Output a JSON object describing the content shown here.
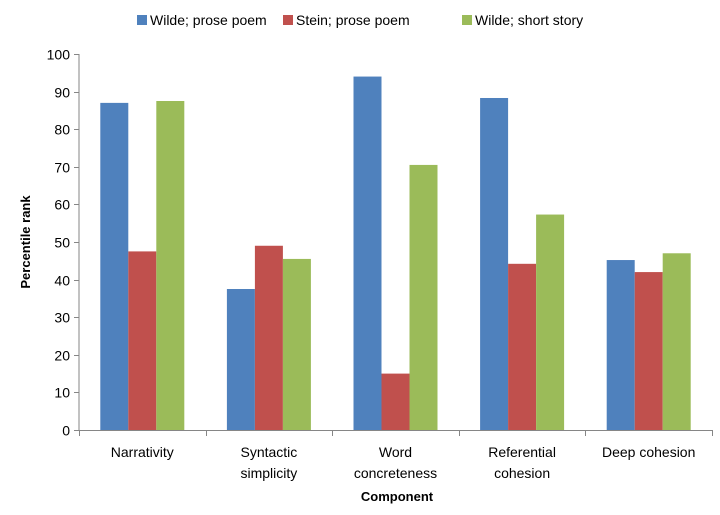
{
  "chart_data": {
    "type": "bar",
    "categories": [
      [
        "Narrativity"
      ],
      [
        "Syntactic",
        "simplicity"
      ],
      [
        "Word",
        "concreteness"
      ],
      [
        "Referential",
        "cohesion"
      ],
      [
        "Deep cohesion"
      ]
    ],
    "series": [
      {
        "name": "Wilde; prose poem",
        "color": "#4f81bd",
        "values": [
          87,
          37.5,
          94,
          88.3,
          45.2
        ]
      },
      {
        "name": "Stein; prose poem",
        "color": "#c0504d",
        "values": [
          47.5,
          49,
          15,
          44.2,
          42
        ]
      },
      {
        "name": "Wilde; short story",
        "color": "#9bbb59",
        "values": [
          87.5,
          45.5,
          70.5,
          57.3,
          47
        ]
      }
    ],
    "xlabel": "Component",
    "ylabel": "Percentile rank",
    "ylim": [
      0,
      100
    ],
    "yticks": [
      0,
      10,
      20,
      30,
      40,
      50,
      60,
      70,
      80,
      90,
      100
    ],
    "grid": false,
    "legend": "top"
  }
}
